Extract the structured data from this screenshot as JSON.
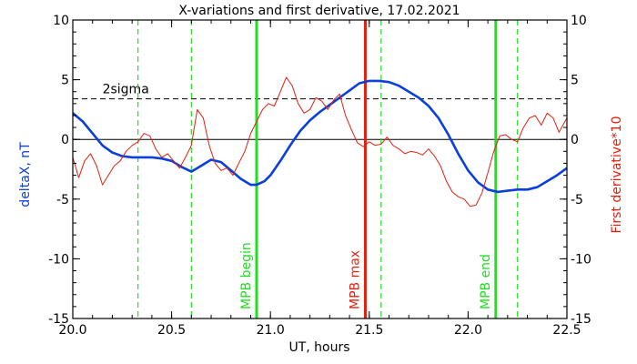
{
  "chart_data": {
    "type": "line",
    "title": "X-variations and first derivative, 17.02.2021",
    "xlabel": "UT, hours",
    "ylabel_left": "deltaX, nT",
    "ylabel_right": "First derivative*10",
    "xlim": [
      20.0,
      22.5
    ],
    "ylim": [
      -15,
      10
    ],
    "x_ticks": [
      "20.0",
      "20.5",
      "21.0",
      "21.5",
      "22.0",
      "22.5"
    ],
    "y_ticks_left": [
      "10",
      "5",
      "0",
      "-5",
      "-10",
      "-15"
    ],
    "y_ticks_right": [
      "10",
      "5",
      "0",
      "-5",
      "-10",
      "-15"
    ],
    "grid": false,
    "colors": {
      "deltaX": "#0a3fdc",
      "derivative": "#e02010",
      "mpb_begin_end": "#22dd22",
      "mpb_max": "#e02010",
      "reference": "#000000"
    },
    "sigma": {
      "label": "2sigma",
      "value": 3.4
    },
    "zero_line": 0,
    "vertical_markers": [
      {
        "x": 20.93,
        "label": "MPB begin",
        "color": "#22dd22",
        "style": "solid"
      },
      {
        "x": 21.48,
        "label": "MPB max",
        "color": "#e02010",
        "style": "solid"
      },
      {
        "x": 22.14,
        "label": "MPB end",
        "color": "#22dd22",
        "style": "solid"
      },
      {
        "x": 20.33,
        "label": "",
        "color": "#22dd22",
        "style": "dashed"
      },
      {
        "x": 20.6,
        "label": "",
        "color": "#22dd22",
        "style": "dashed"
      },
      {
        "x": 21.56,
        "label": "",
        "color": "#22dd22",
        "style": "dashed"
      },
      {
        "x": 22.25,
        "label": "",
        "color": "#22dd22",
        "style": "dashed"
      }
    ],
    "series": [
      {
        "name": "deltaX, nT",
        "axis": "left",
        "color": "#0a3fdc",
        "x": [
          20.0,
          20.05,
          20.1,
          20.15,
          20.2,
          20.25,
          20.3,
          20.35,
          20.4,
          20.45,
          20.5,
          20.55,
          20.6,
          20.65,
          20.7,
          20.75,
          20.8,
          20.85,
          20.9,
          20.93,
          20.97,
          21.0,
          21.05,
          21.1,
          21.15,
          21.2,
          21.25,
          21.3,
          21.35,
          21.4,
          21.45,
          21.5,
          21.55,
          21.6,
          21.65,
          21.7,
          21.75,
          21.8,
          21.85,
          21.9,
          21.95,
          22.0,
          22.05,
          22.1,
          22.15,
          22.2,
          22.25,
          22.3,
          22.35,
          22.4,
          22.45,
          22.5
        ],
        "values": [
          2.2,
          1.5,
          0.5,
          -0.5,
          -1.1,
          -1.4,
          -1.5,
          -1.5,
          -1.5,
          -1.6,
          -1.8,
          -2.3,
          -2.7,
          -2.2,
          -1.7,
          -1.9,
          -2.6,
          -3.3,
          -3.8,
          -3.8,
          -3.5,
          -3.0,
          -1.8,
          -0.5,
          0.7,
          1.6,
          2.3,
          2.9,
          3.5,
          4.1,
          4.7,
          4.9,
          4.9,
          4.8,
          4.5,
          4.0,
          3.5,
          2.8,
          1.8,
          0.4,
          -1.2,
          -2.6,
          -3.6,
          -4.2,
          -4.4,
          -4.3,
          -4.2,
          -4.2,
          -4.0,
          -3.5,
          -3.0,
          -2.4
        ]
      },
      {
        "name": "First derivative*10",
        "axis": "right",
        "color": "#e02010",
        "x": [
          20.0,
          20.03,
          20.06,
          20.09,
          20.12,
          20.15,
          20.18,
          20.21,
          20.24,
          20.27,
          20.3,
          20.33,
          20.36,
          20.39,
          20.42,
          20.45,
          20.48,
          20.51,
          20.54,
          20.57,
          20.6,
          20.63,
          20.66,
          20.69,
          20.72,
          20.75,
          20.78,
          20.81,
          20.84,
          20.87,
          20.9,
          20.93,
          20.96,
          20.99,
          21.02,
          21.05,
          21.08,
          21.11,
          21.14,
          21.17,
          21.2,
          21.23,
          21.26,
          21.29,
          21.32,
          21.35,
          21.38,
          21.41,
          21.44,
          21.47,
          21.5,
          21.53,
          21.56,
          21.59,
          21.62,
          21.65,
          21.68,
          21.71,
          21.74,
          21.77,
          21.8,
          21.83,
          21.86,
          21.89,
          21.92,
          21.95,
          21.98,
          22.01,
          22.04,
          22.07,
          22.1,
          22.13,
          22.16,
          22.19,
          22.22,
          22.25,
          22.28,
          22.31,
          22.34,
          22.37,
          22.4,
          22.43,
          22.46,
          22.5
        ],
        "values": [
          -1.5,
          -3.2,
          -1.8,
          -1.2,
          -2.2,
          -3.8,
          -3.0,
          -2.2,
          -1.8,
          -1.0,
          -0.5,
          -0.2,
          0.5,
          0.3,
          -0.8,
          -1.5,
          -1.2,
          -1.8,
          -2.4,
          -1.5,
          -0.5,
          2.5,
          1.8,
          -0.5,
          -2.0,
          -2.6,
          -2.4,
          -3.0,
          -2.0,
          -1.0,
          0.5,
          1.5,
          2.5,
          3.0,
          2.8,
          4.0,
          5.2,
          4.5,
          3.0,
          2.2,
          2.5,
          3.5,
          3.2,
          2.5,
          3.3,
          3.8,
          2.0,
          0.8,
          -0.3,
          -0.6,
          -0.2,
          -0.5,
          -0.4,
          0.2,
          -0.5,
          -0.8,
          -1.2,
          -1.0,
          -1.1,
          -1.3,
          -0.8,
          -1.4,
          -2.2,
          -3.5,
          -4.4,
          -4.8,
          -5.0,
          -5.6,
          -5.5,
          -4.5,
          -2.8,
          -1.0,
          0.3,
          0.4,
          0.0,
          -0.2,
          1.0,
          1.8,
          2.0,
          1.2,
          2.2,
          1.8,
          0.6,
          1.8
        ]
      }
    ]
  }
}
